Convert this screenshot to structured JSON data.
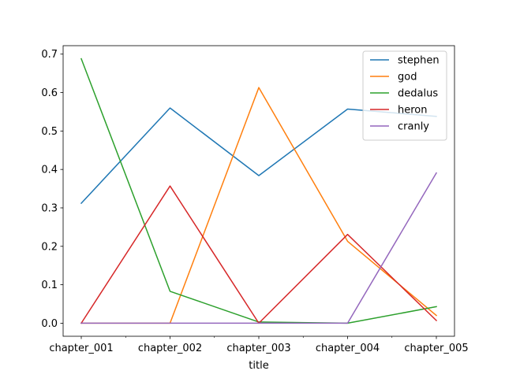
{
  "chart_data": {
    "type": "line",
    "title": "",
    "xlabel": "title",
    "ylabel": "",
    "categories": [
      "chapter_001",
      "chapter_002",
      "chapter_003",
      "chapter_004",
      "chapter_005"
    ],
    "ylim": [
      -0.034,
      0.722
    ],
    "yticks": [
      0.0,
      0.1,
      0.2,
      0.3,
      0.4,
      0.5,
      0.6,
      0.7
    ],
    "ytick_labels": [
      "0.0",
      "0.1",
      "0.2",
      "0.3",
      "0.4",
      "0.5",
      "0.6",
      "0.7"
    ],
    "minor_xticks_between_categories": true,
    "grid": false,
    "legend_position": "top-right",
    "series": [
      {
        "name": "stephen",
        "color": "#1f77b4",
        "values": [
          0.312,
          0.56,
          0.384,
          0.557,
          0.538
        ]
      },
      {
        "name": "god",
        "color": "#ff7f0e",
        "values": [
          0.0,
          0.0,
          0.613,
          0.213,
          0.02
        ]
      },
      {
        "name": "dedalus",
        "color": "#2ca02c",
        "values": [
          0.688,
          0.083,
          0.003,
          0.0,
          0.043
        ]
      },
      {
        "name": "heron",
        "color": "#d62728",
        "values": [
          0.0,
          0.357,
          0.0,
          0.231,
          0.007
        ]
      },
      {
        "name": "cranly",
        "color": "#9467bd",
        "values": [
          0.0,
          0.0,
          0.0,
          0.0,
          0.391
        ]
      }
    ]
  }
}
